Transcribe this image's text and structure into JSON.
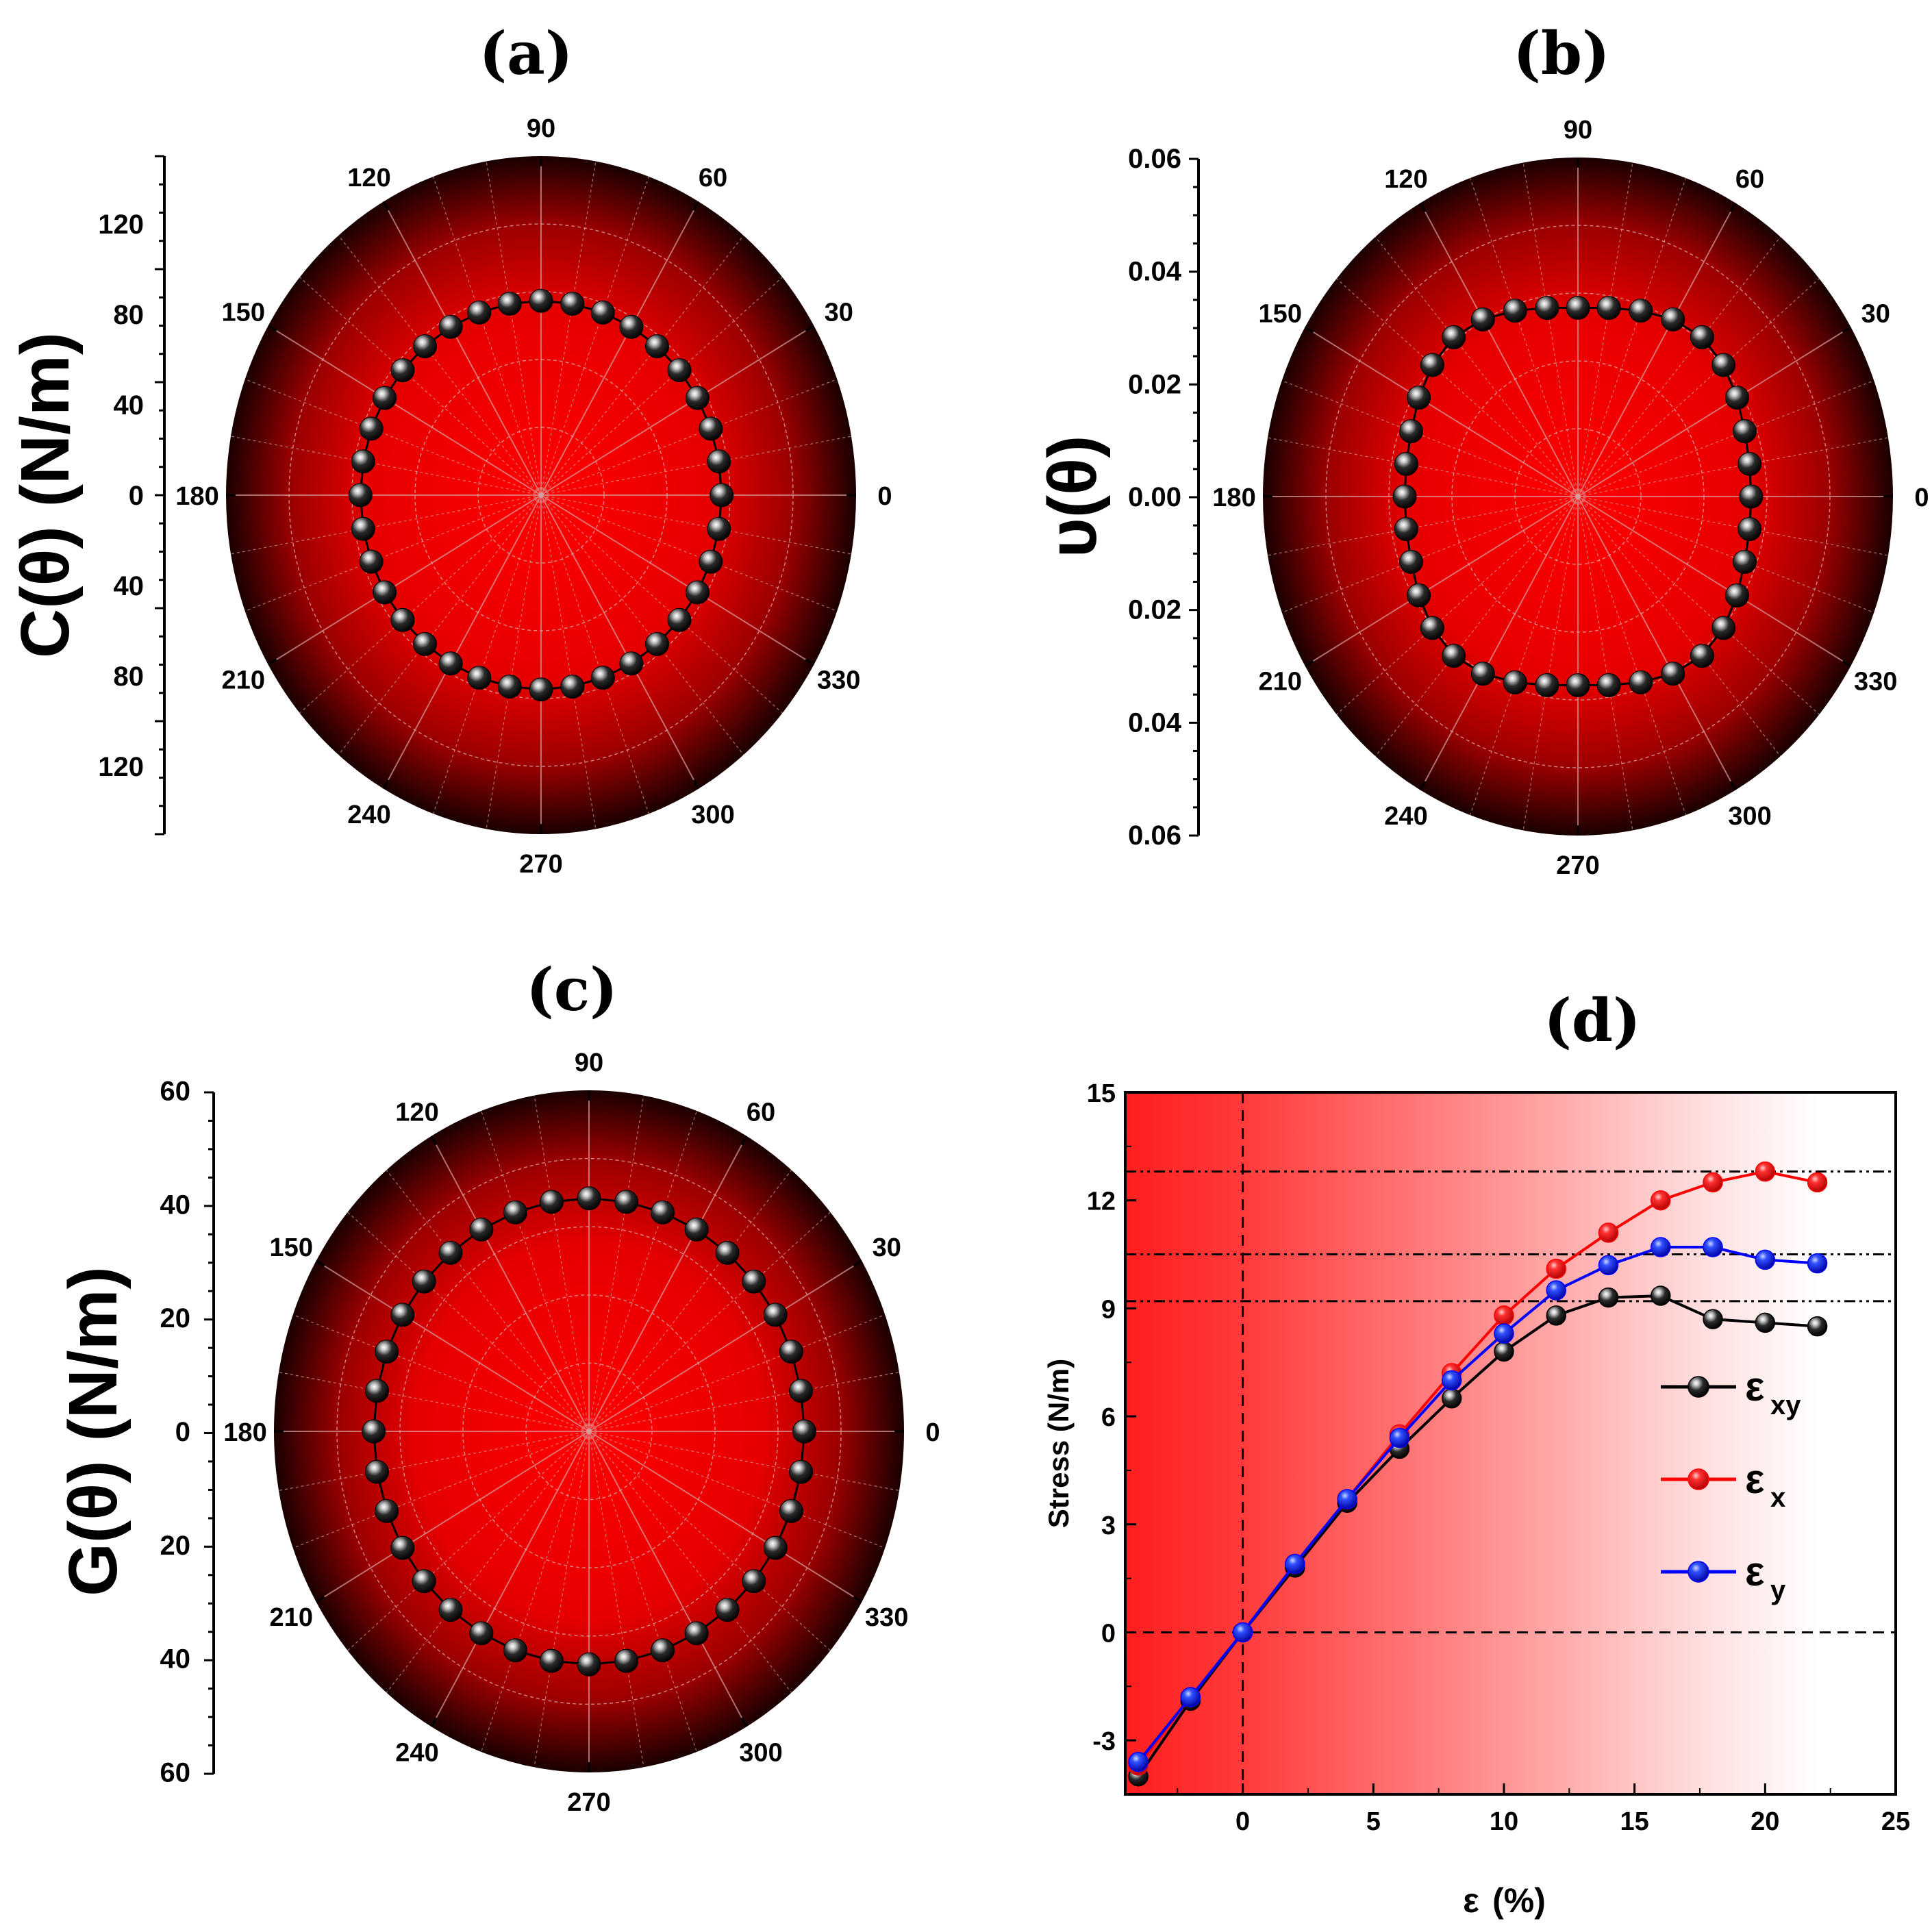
{
  "chart_data": [
    {
      "panel": "a",
      "type": "polar",
      "title": "(a)",
      "ylabel": "C(θ) (N/m)",
      "radial_ticks": [
        "120",
        "80",
        "40",
        "0",
        "40",
        "80",
        "120"
      ],
      "radial_tick_values": [
        120,
        80,
        40,
        0,
        -40,
        -80,
        -120
      ],
      "rmax": 150,
      "angle_labels": [
        "0",
        "30",
        "60",
        "90",
        "120",
        "150",
        "180",
        "210",
        "240",
        "270",
        "300",
        "330"
      ],
      "angles_deg": [
        0,
        10,
        20,
        30,
        40,
        50,
        60,
        70,
        80,
        90,
        100,
        110,
        120,
        130,
        140,
        150,
        160,
        170,
        180,
        190,
        200,
        210,
        220,
        230,
        240,
        250,
        260,
        270,
        280,
        290,
        300,
        310,
        320,
        330,
        340,
        350
      ],
      "radius": [
        86,
        86,
        86,
        86,
        86,
        86,
        86,
        86,
        86,
        86,
        86,
        86,
        86,
        86,
        86,
        86,
        86,
        86,
        86,
        86,
        86,
        86,
        86,
        86,
        86,
        86,
        86,
        86,
        86,
        86,
        86,
        86,
        86,
        86,
        86,
        86
      ]
    },
    {
      "panel": "b",
      "type": "polar",
      "title": "(b)",
      "ylabel": "υ(θ)",
      "radial_ticks": [
        "0.06",
        "0.04",
        "0.02",
        "0.00",
        "0.02",
        "0.04",
        "0.06"
      ],
      "radial_tick_values": [
        0.06,
        0.04,
        0.02,
        0.0,
        -0.02,
        -0.04,
        -0.06
      ],
      "rmax": 0.06,
      "angle_labels": [
        "0",
        "30",
        "60",
        "90",
        "120",
        "150",
        "180",
        "210",
        "240",
        "270",
        "300",
        "330"
      ],
      "angles_deg": [
        0,
        10,
        20,
        30,
        40,
        50,
        60,
        70,
        80,
        90,
        100,
        110,
        120,
        130,
        140,
        150,
        160,
        170,
        180,
        190,
        200,
        210,
        220,
        230,
        240,
        250,
        260,
        270,
        280,
        290,
        300,
        310,
        320,
        330,
        340,
        350
      ],
      "radius": [
        0.033,
        0.0332,
        0.0338,
        0.035,
        0.0362,
        0.0368,
        0.0362,
        0.035,
        0.0339,
        0.0334,
        0.0339,
        0.035,
        0.0362,
        0.0368,
        0.0362,
        0.035,
        0.0338,
        0.0332,
        0.033,
        0.0332,
        0.0338,
        0.035,
        0.0362,
        0.0368,
        0.0362,
        0.035,
        0.0339,
        0.0334,
        0.0339,
        0.035,
        0.0362,
        0.0368,
        0.0362,
        0.035,
        0.0338,
        0.0332
      ]
    },
    {
      "panel": "c",
      "type": "polar",
      "title": "(c)",
      "ylabel": "G(θ) (N/m)",
      "radial_ticks": [
        "60",
        "40",
        "20",
        "0",
        "20",
        "40",
        "60"
      ],
      "radial_tick_values": [
        60,
        40,
        20,
        0,
        -20,
        -40,
        -60
      ],
      "rmax": 60,
      "angle_labels": [
        "0",
        "30",
        "60",
        "90",
        "120",
        "150",
        "180",
        "210",
        "240",
        "270",
        "300",
        "330"
      ],
      "angles_deg": [
        0,
        10,
        20,
        30,
        40,
        50,
        60,
        70,
        80,
        90,
        100,
        110,
        120,
        130,
        140,
        150,
        160,
        170,
        180,
        190,
        200,
        210,
        220,
        230,
        240,
        250,
        260,
        270,
        280,
        290,
        300,
        310,
        320,
        330,
        340,
        350
      ],
      "radius": [
        41,
        41,
        41,
        41,
        41,
        41,
        41,
        41,
        41,
        41,
        41,
        41,
        41,
        41,
        41,
        41,
        41,
        41,
        41,
        41,
        41,
        41,
        41,
        41,
        41,
        41,
        41,
        41,
        41,
        41,
        41,
        41,
        41,
        41,
        41,
        41
      ]
    },
    {
      "panel": "d",
      "type": "line",
      "title": "(d)",
      "xlabel": "ε",
      "xlabel_unit": "(%)",
      "ylabel": "Stress (N/m)",
      "xlim": [
        -4.5,
        25
      ],
      "ylim": [
        -4.5,
        15
      ],
      "xticks": [
        "0",
        "5",
        "10",
        "15",
        "20",
        "25"
      ],
      "yticks": [
        "-3",
        "0",
        "3",
        "6",
        "9",
        "12",
        "15"
      ],
      "reference_levels": [
        12.8,
        10.5,
        9.2
      ],
      "x": [
        -4,
        -2,
        0,
        2,
        4,
        6,
        8,
        10,
        12,
        14,
        16,
        18,
        20,
        22
      ],
      "series": [
        {
          "name": "ε",
          "subscript": "xy",
          "color": "#000000",
          "values": [
            -4.0,
            -1.9,
            0.0,
            1.8,
            3.6,
            5.1,
            6.5,
            7.8,
            8.8,
            9.3,
            9.35,
            8.7,
            8.6,
            8.5
          ]
        },
        {
          "name": "ε",
          "subscript": "x",
          "color": "#ff0000",
          "values": [
            -3.7,
            -1.8,
            0.0,
            1.9,
            3.7,
            5.5,
            7.2,
            8.8,
            10.1,
            11.1,
            12.0,
            12.5,
            12.8,
            12.5
          ]
        },
        {
          "name": "ε",
          "subscript": "y",
          "color": "#0000ff",
          "values": [
            -3.6,
            -1.8,
            0.0,
            1.9,
            3.7,
            5.4,
            7.0,
            8.3,
            9.5,
            10.2,
            10.7,
            10.7,
            10.35,
            10.25
          ]
        }
      ]
    }
  ]
}
